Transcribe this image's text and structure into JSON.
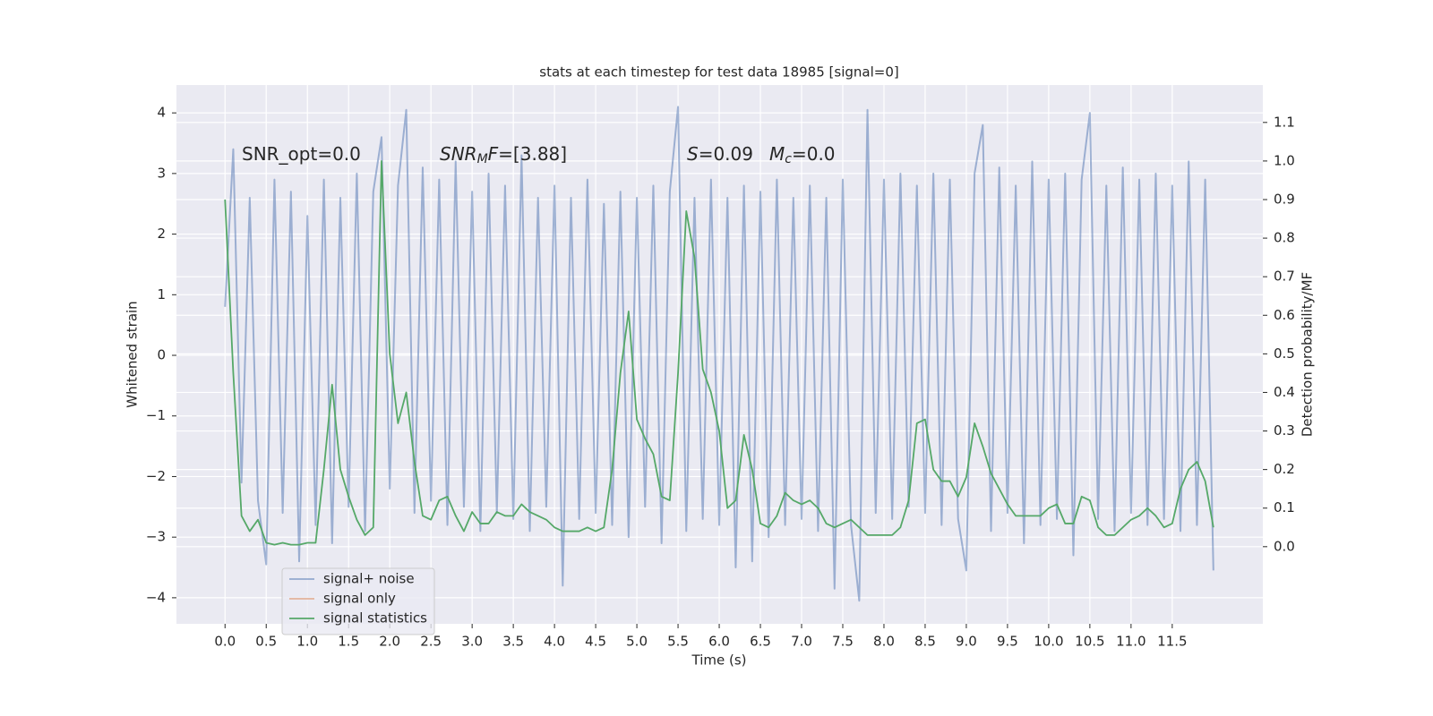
{
  "chart_data": {
    "type": "line",
    "title": "stats at each timestep for test data 18985 [signal=0]",
    "xlabel": "Time (s)",
    "ylabel": "Whitened strain",
    "y2label": "Detection probability/MF",
    "annotations": [
      {
        "text": "SNR_opt=0.0"
      },
      {
        "base": "SNR",
        "sub": "M",
        "rest": "F=[3.88]"
      },
      {
        "base": "S",
        "rest": "=0.09"
      },
      {
        "base": "M",
        "sub": "c",
        "rest": "=0.0"
      }
    ],
    "x": [
      0,
      0.1,
      0.2,
      0.3,
      0.4,
      0.5,
      0.6,
      0.7,
      0.8,
      0.9,
      1,
      1.1,
      1.2,
      1.3,
      1.4,
      1.5,
      1.6,
      1.7,
      1.8,
      1.9,
      2,
      2.1,
      2.2,
      2.3,
      2.4,
      2.5,
      2.6,
      2.7,
      2.8,
      2.9,
      3,
      3.1,
      3.2,
      3.3,
      3.4,
      3.5,
      3.6,
      3.7,
      3.8,
      3.9,
      4,
      4.1,
      4.2,
      4.3,
      4.4,
      4.5,
      4.6,
      4.7,
      4.8,
      4.9,
      5,
      5.1,
      5.2,
      5.3,
      5.4,
      5.5,
      5.6,
      5.7,
      5.8,
      5.9,
      6,
      6.1,
      6.2,
      6.3,
      6.4,
      6.5,
      6.6,
      6.7,
      6.8,
      6.9,
      7,
      7.1,
      7.2,
      7.3,
      7.4,
      7.5,
      7.6,
      7.7,
      7.8,
      7.9,
      8,
      8.1,
      8.2,
      8.3,
      8.4,
      8.5,
      8.6,
      8.7,
      8.8,
      8.9,
      9,
      9.1,
      9.2,
      9.3,
      9.4,
      9.5,
      9.6,
      9.7,
      9.8,
      9.9,
      10,
      10.1,
      10.2,
      10.3,
      10.4,
      10.5,
      10.6,
      10.7,
      10.8,
      10.9,
      11,
      11.1,
      11.2,
      11.3,
      11.4,
      11.5,
      11.6,
      11.7,
      11.8,
      11.9,
      12
    ],
    "series": [
      {
        "name": "signal+ noise",
        "color": "#4c72b0",
        "values": [
          0.8,
          3.4,
          -2.1,
          2.6,
          -2.4,
          -3.45,
          2.9,
          -2.6,
          2.7,
          -3.4,
          2.3,
          -2.8,
          2.9,
          -3.1,
          2.6,
          -2.5,
          3.0,
          -2.9,
          2.7,
          3.6,
          -2.2,
          2.8,
          4.05,
          -2.6,
          3.1,
          -2.4,
          2.9,
          -2.8,
          3.2,
          -2.5,
          2.7,
          -2.9,
          3.0,
          -2.6,
          2.8,
          -2.7,
          3.3,
          -2.9,
          2.6,
          -2.5,
          2.8,
          -3.8,
          2.6,
          -2.7,
          2.9,
          -2.6,
          2.5,
          -2.8,
          2.7,
          -3.0,
          2.6,
          -2.5,
          2.8,
          -3.1,
          2.7,
          4.1,
          -2.9,
          2.6,
          -2.7,
          2.9,
          -2.8,
          2.6,
          -3.5,
          2.8,
          -3.4,
          2.7,
          -3.0,
          2.9,
          -2.8,
          2.6,
          -2.7,
          2.8,
          -2.9,
          2.6,
          -3.85,
          2.9,
          -2.8,
          -4.05,
          4.05,
          -2.6,
          2.9,
          -2.7,
          3.0,
          -2.5,
          2.8,
          -2.6,
          3.0,
          -2.8,
          2.9,
          -2.7,
          -3.55,
          3.0,
          3.8,
          -2.9,
          3.1,
          -2.6,
          2.8,
          -3.1,
          3.2,
          -2.8,
          2.9,
          -2.7,
          3.0,
          -3.3,
          2.9,
          4.0,
          -2.7,
          2.8,
          -2.9,
          3.1,
          -2.6,
          2.9,
          -2.8,
          3.0,
          -2.7,
          2.8,
          -2.9,
          3.2,
          -2.8,
          2.9,
          -3.55
        ]
      },
      {
        "name": "signal only",
        "color": "#dd8452"
      },
      {
        "name": "signal statistics",
        "color": "#55a868",
        "axis": "y2",
        "values": [
          0.9,
          0.45,
          0.08,
          0.04,
          0.07,
          0.01,
          0.005,
          0.01,
          0.005,
          0.005,
          0.01,
          0.01,
          0.2,
          0.42,
          0.2,
          0.13,
          0.07,
          0.03,
          0.05,
          1.0,
          0.5,
          0.32,
          0.4,
          0.22,
          0.08,
          0.07,
          0.12,
          0.13,
          0.08,
          0.04,
          0.09,
          0.06,
          0.06,
          0.09,
          0.08,
          0.08,
          0.11,
          0.09,
          0.08,
          0.07,
          0.05,
          0.04,
          0.04,
          0.04,
          0.05,
          0.04,
          0.05,
          0.2,
          0.45,
          0.61,
          0.33,
          0.28,
          0.24,
          0.13,
          0.12,
          0.45,
          0.87,
          0.75,
          0.46,
          0.4,
          0.3,
          0.1,
          0.12,
          0.29,
          0.2,
          0.06,
          0.05,
          0.08,
          0.14,
          0.12,
          0.11,
          0.12,
          0.1,
          0.06,
          0.05,
          0.06,
          0.07,
          0.05,
          0.03,
          0.03,
          0.03,
          0.03,
          0.05,
          0.12,
          0.32,
          0.33,
          0.2,
          0.17,
          0.17,
          0.13,
          0.18,
          0.32,
          0.26,
          0.19,
          0.15,
          0.11,
          0.08,
          0.08,
          0.08,
          0.08,
          0.1,
          0.11,
          0.06,
          0.06,
          0.13,
          0.12,
          0.05,
          0.03,
          0.03,
          0.05,
          0.07,
          0.08,
          0.1,
          0.08,
          0.05,
          0.06,
          0.15,
          0.2,
          0.22,
          0.17,
          0.05
        ]
      }
    ],
    "xlim": [
      -0.59,
      12.6
    ],
    "ylim": [
      -4.43,
      4.46
    ],
    "y2lim": [
      -0.2,
      1.197
    ],
    "xticks": [
      {
        "value": 0,
        "label": "0.0"
      },
      {
        "value": 0.5,
        "label": "0.5"
      },
      {
        "value": 1,
        "label": "1.0"
      },
      {
        "value": 1.5,
        "label": "1.5"
      },
      {
        "value": 2,
        "label": "2.0"
      },
      {
        "value": 2.5,
        "label": "2.5"
      },
      {
        "value": 3,
        "label": "3.0"
      },
      {
        "value": 3.5,
        "label": "3.5"
      },
      {
        "value": 4,
        "label": "4.0"
      },
      {
        "value": 4.5,
        "label": "4.5"
      },
      {
        "value": 5,
        "label": "5.0"
      },
      {
        "value": 5.5,
        "label": "5.5"
      },
      {
        "value": 6,
        "label": "6.0"
      },
      {
        "value": 6.5,
        "label": "6.5"
      },
      {
        "value": 7,
        "label": "7.0"
      },
      {
        "value": 7.5,
        "label": "7.5"
      },
      {
        "value": 8,
        "label": "8.0"
      },
      {
        "value": 8.5,
        "label": "8.5"
      },
      {
        "value": 9,
        "label": "9.0"
      },
      {
        "value": 9.5,
        "label": "9.5"
      },
      {
        "value": 10,
        "label": "10.0"
      },
      {
        "value": 10.5,
        "label": "10.5"
      },
      {
        "value": 11,
        "label": "11.0"
      },
      {
        "value": 11.5,
        "label": "11.5"
      }
    ],
    "yticks": [
      {
        "value": -4,
        "label": "−4"
      },
      {
        "value": -3,
        "label": "−3"
      },
      {
        "value": -2,
        "label": "−2"
      },
      {
        "value": -1,
        "label": "−1"
      },
      0,
      1,
      2,
      3,
      4
    ],
    "y2ticks": [
      {
        "value": 0,
        "label": "0.0"
      },
      {
        "value": 0.1,
        "label": "0.1"
      },
      {
        "value": 0.2,
        "label": "0.2"
      },
      {
        "value": 0.3,
        "label": "0.3"
      },
      {
        "value": 0.4,
        "label": "0.4"
      },
      {
        "value": 0.5,
        "label": "0.5"
      },
      {
        "value": 0.6,
        "label": "0.6"
      },
      {
        "value": 0.7,
        "label": "0.7"
      },
      {
        "value": 0.8,
        "label": "0.8"
      },
      {
        "value": 0.9,
        "label": "0.9"
      },
      {
        "value": 1,
        "label": "1.0"
      },
      {
        "value": 1.1,
        "label": "1.1"
      }
    ],
    "grid": true,
    "legend": "lower left"
  }
}
